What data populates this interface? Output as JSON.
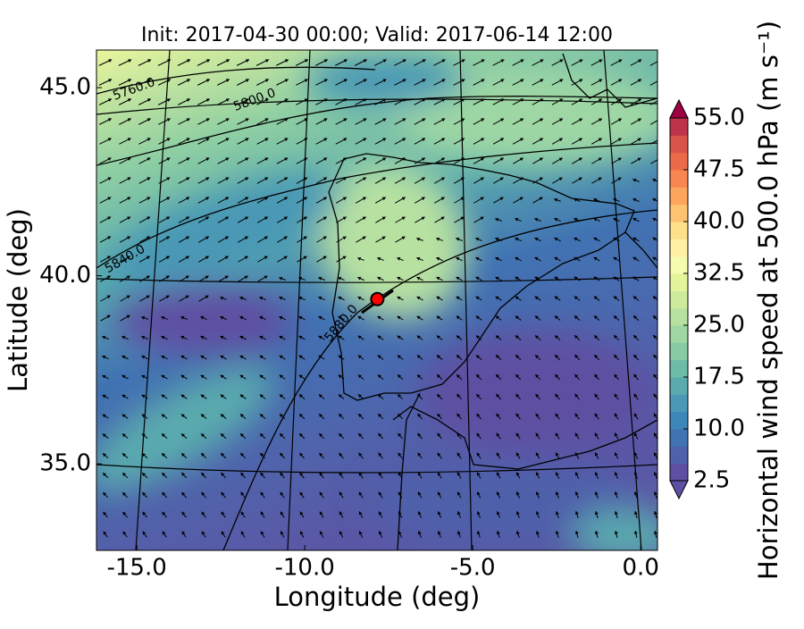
{
  "chart_data": {
    "type": "map",
    "title": "Init: 2017-04-30 00:00; Valid: 2017-06-14 12:00",
    "xlabel": "Longitude (deg)",
    "ylabel": "Latitude (deg)",
    "xlim": [
      -16.2,
      0.5
    ],
    "ylim": [
      32.7,
      46.0
    ],
    "xticks": [
      {
        "value": -15,
        "label": "-15.0"
      },
      {
        "value": -10,
        "label": "-10.0"
      },
      {
        "value": -5,
        "label": "-5.0"
      },
      {
        "value": 0,
        "label": "0.0"
      }
    ],
    "yticks": [
      {
        "value": 35,
        "label": "35.0"
      },
      {
        "value": 40,
        "label": "40.0"
      },
      {
        "value": 45,
        "label": "45.0"
      }
    ],
    "contour_labels": [
      "5760.0",
      "5800.0",
      "5840.0",
      "5880.0"
    ],
    "marker": {
      "x": -7.84,
      "y": 39.38,
      "color": "#ff0000"
    },
    "colorbar": {
      "label": "Horizontal wind speed at 500.0 hPa (m s⁻¹)",
      "lim": [
        2.5,
        55
      ],
      "ticks": [
        {
          "value": 2.5,
          "label": "2.5"
        },
        {
          "value": 10,
          "label": "10.0"
        },
        {
          "value": 17.5,
          "label": "17.5"
        },
        {
          "value": 25,
          "label": "25.0"
        },
        {
          "value": 32.5,
          "label": "32.5"
        },
        {
          "value": 40,
          "label": "40.0"
        },
        {
          "value": 47.5,
          "label": "47.5"
        },
        {
          "value": 55,
          "label": "55.0"
        }
      ],
      "colors": [
        "#5e4fa2",
        "#4f61aa",
        "#4173b3",
        "#3d86b8",
        "#4a98b5",
        "#5aaaae",
        "#6cbca7",
        "#86cba4",
        "#9ed7a4",
        "#b7e1a1",
        "#ceeb9c",
        "#e4f49b",
        "#f5fbaf",
        "#fff0a6",
        "#fee08b",
        "#fdc371",
        "#fca55d",
        "#f88650",
        "#ec6a47",
        "#d9534a",
        "#be3349"
      ],
      "under_color": "#5e4fa2",
      "over_color": "#9e0142"
    }
  }
}
